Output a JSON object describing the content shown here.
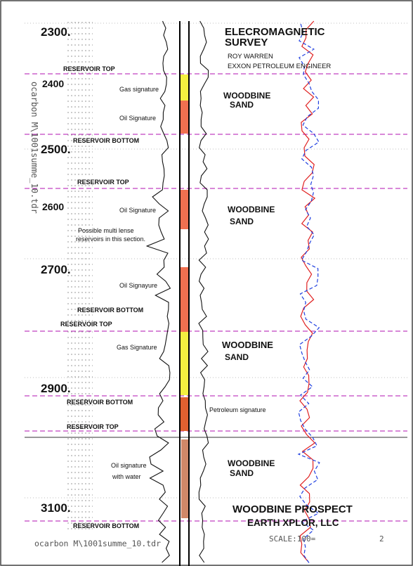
{
  "depth_labels": [
    {
      "id": "d2300",
      "text": "2300."
    },
    {
      "id": "d2400",
      "text": "2400"
    },
    {
      "id": "d2500",
      "text": "2500."
    },
    {
      "id": "d2600",
      "text": "2600"
    },
    {
      "id": "d2700",
      "text": "2700."
    },
    {
      "id": "d2900",
      "text": "2900."
    },
    {
      "id": "d3100",
      "text": "3100."
    }
  ],
  "vertical_file_label": "ocarbon M\\1001summe_10.tdr",
  "bottom_file_label": "ocarbon M\\1001summe_10.tdr",
  "scale_label": "SCALE:100=",
  "scale_value": "2",
  "header": {
    "title_line1": "ELECROMAGNETIC",
    "title_line2": "SURVEY",
    "author": "ROY WARREN",
    "affiliation": "EXXON PETROLEUM ENGINEER"
  },
  "reservoir_labels": {
    "r1": "RESERVOIR TOP",
    "r2": "RESERVOIR BOTTOM",
    "r3": "RESERVOIR TOP",
    "r4": "RESERVOIR BOTTOM",
    "r5": "RESERVOIR TOP",
    "r6": "RESERVOIR BOTTOM",
    "r7": "RESERVOIR TOP",
    "r8": "RESERVOIR BOTTOM"
  },
  "signatures": {
    "s1": "Gas signature",
    "s2": "Oil Signature",
    "s3": "Oil Signature",
    "s4_line1": "Possible multi lense",
    "s4_line2": "reservoirs in this section.",
    "s5": "Oil Signayure",
    "s6": "Gas Signature",
    "s7": "Petroleum signature",
    "s8_line1": "Oil  signature",
    "s8_line2": "with water"
  },
  "formations": {
    "f1_line1": "WOODBINE",
    "f1_line2": "SAND",
    "f2_line1": "WOODBINE",
    "f2_line2": "SAND",
    "f3_line1": "WOODBINE",
    "f3_line2": "SAND",
    "f4_line1": "WOODBINE",
    "f4_line2": "SAND"
  },
  "footer": {
    "prospect": "WOODBINE PROSPECT",
    "company": "EARTH XPLOR, LLC"
  },
  "colors": {
    "reservoir_line": "#c040c0",
    "gas_fill": "#f4f040",
    "oil_fill": "#f07050",
    "petroleum_fill": "#e06030",
    "water_oil_fill": "#d08868",
    "red_curve": "#e02020",
    "blue_curve": "#2040e0"
  }
}
